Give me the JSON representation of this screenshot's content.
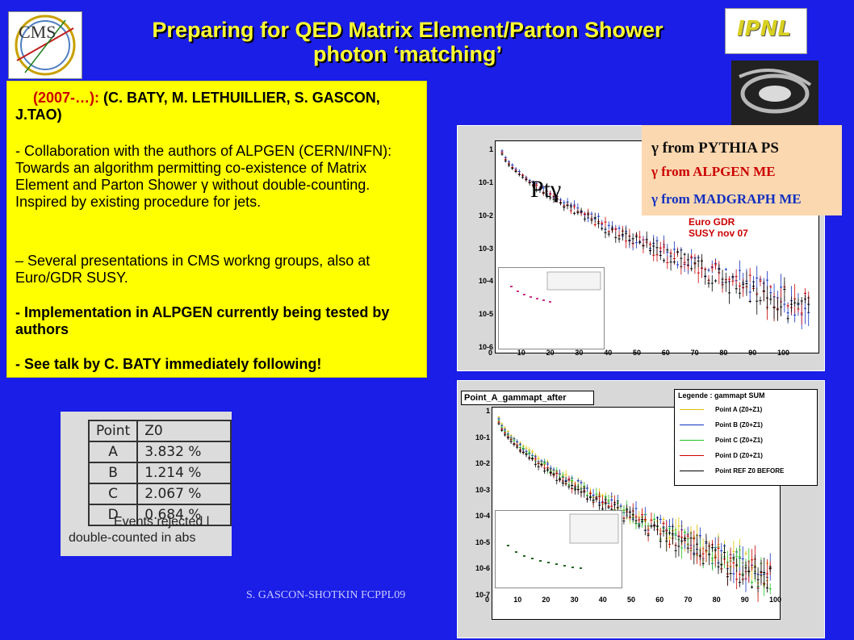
{
  "title": {
    "line1": "Preparing for QED Matrix Element/Parton Shower",
    "line2": "photon ‘matching’"
  },
  "logos": {
    "cms": "CMS",
    "ipnl": "IPNL"
  },
  "box": {
    "header_red": "(2007-…):",
    "header_rest": " (C. BATY, M. LETHUILLIER, S. GASCON, J.TAO)",
    "p1": "- Collaboration with the authors of ALPGEN (CERN/INFN): Towards an algorithm permitting co-existence of Matrix Element and Parton Shower γ without double-counting. Inspired by existing procedure for jets.",
    "p2": "– Several presentations in CMS workng groups, also at Euro/GDR SUSY.",
    "p3": "- Implementation in ALPGEN currently being tested by authors",
    "p4": "- See talk by C. BATY immediately following!"
  },
  "plot1": {
    "label": "Ptγ",
    "legend": [
      "γ from PYTHIA PS",
      "γ from ALPGEN ME",
      "γ from MADGRAPH ME"
    ],
    "note": "Euro GDR SUSY nov 07",
    "y_ticks": [
      "1",
      "10-1",
      "10-2",
      "10-3",
      "10-4",
      "10-5",
      "10-6"
    ],
    "x_ticks": [
      "0",
      "10",
      "20",
      "30",
      "40",
      "50",
      "60",
      "70",
      "80",
      "90",
      "100"
    ]
  },
  "plot2": {
    "title": "Point_A_gammapt_after",
    "legend_title": "Legende : gammapt SUM",
    "legend": [
      "Point A (Z0+Z1)",
      "Point B (Z0+Z1)",
      "Point C (Z0+Z1)",
      "Point D (Z0+Z1)",
      "Point REF Z0 BEFORE"
    ],
    "y_ticks": [
      "1",
      "10-1",
      "10-2",
      "10-3",
      "10-4",
      "10-5",
      "10-6",
      "10-7"
    ],
    "x_ticks": [
      "0",
      "10",
      "20",
      "30",
      "40",
      "50",
      "60",
      "70",
      "80",
      "90",
      "100"
    ]
  },
  "table": {
    "headers": [
      "Point",
      "Z0"
    ],
    "rows": [
      [
        "A",
        "3.832 %"
      ],
      [
        "B",
        "1.214 %"
      ],
      [
        "C",
        "2.067 %"
      ],
      [
        "D",
        "0.684 %"
      ]
    ],
    "caption1": "Events rejected l",
    "caption2": "double-counted in abs"
  },
  "footer": "S. GASCON-SHOTKIN FCPPL09",
  "colors": {
    "background": "#1a1ee6",
    "title": "#ffff33",
    "box": "#ffff00"
  }
}
